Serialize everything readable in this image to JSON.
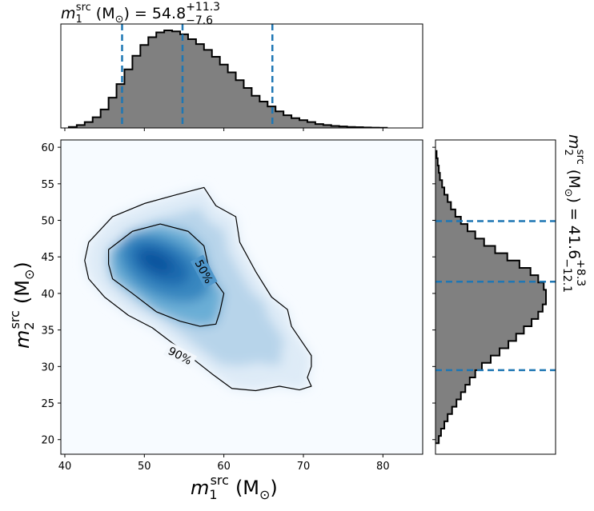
{
  "chart_data": [
    {
      "type": "area",
      "panel": "top-marginal",
      "title_main": "m",
      "title_sub": "1",
      "title_sup": "src",
      "title_unit": "(M",
      "title_sun_sub": "⊙",
      "title_close": ")",
      "title_eq": "= 54.8",
      "title_plus": "+11.3",
      "title_minus": "−7.6",
      "xlim": [
        39.5,
        85
      ],
      "ylim": [
        0,
        1
      ],
      "grid": false,
      "x": [
        41,
        42,
        43,
        44,
        45,
        46,
        47,
        48,
        49,
        50,
        51,
        52,
        53,
        54,
        55,
        56,
        57,
        58,
        59,
        60,
        61,
        62,
        63,
        64,
        65,
        66,
        67,
        68,
        69,
        70,
        71,
        72,
        73,
        74,
        75,
        76,
        77,
        78,
        79,
        80
      ],
      "density": [
        0.01,
        0.03,
        0.06,
        0.11,
        0.19,
        0.31,
        0.45,
        0.6,
        0.74,
        0.85,
        0.93,
        0.98,
        1.0,
        0.99,
        0.96,
        0.91,
        0.86,
        0.8,
        0.73,
        0.65,
        0.57,
        0.49,
        0.41,
        0.33,
        0.27,
        0.22,
        0.17,
        0.13,
        0.1,
        0.08,
        0.06,
        0.04,
        0.03,
        0.02,
        0.015,
        0.01,
        0.008,
        0.005,
        0.003,
        0.002
      ],
      "quantile_lines": [
        47.2,
        54.8,
        66.1
      ]
    },
    {
      "type": "area",
      "panel": "right-marginal",
      "orientation": "horizontal",
      "label_main": "m",
      "label_sub": "2",
      "label_sup": "src",
      "label_unit": "(M",
      "label_sun_sub": "⊙",
      "label_close": ")",
      "label_eq": "= 41.6",
      "label_plus": "+8.3",
      "label_minus": "−12.1",
      "ylim": [
        18,
        61
      ],
      "y": [
        20,
        21,
        22,
        23,
        24,
        25,
        26,
        27,
        28,
        29,
        30,
        31,
        32,
        33,
        34,
        35,
        36,
        37,
        38,
        39,
        40,
        41,
        42,
        43,
        44,
        45,
        46,
        47,
        48,
        49,
        50,
        51,
        52,
        53,
        54,
        55,
        56,
        57,
        58,
        59
      ],
      "density": [
        0.03,
        0.05,
        0.08,
        0.11,
        0.15,
        0.19,
        0.23,
        0.27,
        0.31,
        0.36,
        0.42,
        0.5,
        0.58,
        0.66,
        0.73,
        0.8,
        0.87,
        0.93,
        0.97,
        1.0,
        1.0,
        0.98,
        0.93,
        0.86,
        0.76,
        0.65,
        0.54,
        0.44,
        0.36,
        0.29,
        0.23,
        0.18,
        0.14,
        0.11,
        0.08,
        0.06,
        0.04,
        0.03,
        0.02,
        0.01
      ],
      "quantile_lines": [
        29.5,
        41.6,
        49.9
      ]
    },
    {
      "type": "heatmap",
      "panel": "joint",
      "xlabel_main": "m",
      "xlabel_sub": "1",
      "xlabel_sup": "src",
      "xlabel_unit": "(M",
      "xlabel_sun_sub": "⊙",
      "xlabel_close": ")",
      "ylabel_main": "m",
      "ylabel_sub": "2",
      "ylabel_sup": "src",
      "ylabel_unit": "(M",
      "ylabel_sun_sub": "⊙",
      "ylabel_close": ")",
      "xlim": [
        39.5,
        85
      ],
      "ylim": [
        18,
        61
      ],
      "xticks": [
        "40",
        "50",
        "60",
        "70",
        "80"
      ],
      "xtick_values": [
        40,
        50,
        60,
        70,
        80
      ],
      "yticks": [
        "20",
        "25",
        "30",
        "35",
        "40",
        "45",
        "50",
        "55",
        "60"
      ],
      "ytick_values": [
        20,
        25,
        30,
        35,
        40,
        45,
        50,
        55,
        60
      ],
      "colormap": "Blues",
      "peak": [
        52,
        44
      ],
      "contours": [
        {
          "label": "90%",
          "label_at": [
            54.5,
            31.5
          ],
          "points": [
            [
              43,
              47
            ],
            [
              46,
              50.5
            ],
            [
              50,
              52.3
            ],
            [
              54,
              53.5
            ],
            [
              57.5,
              54.5
            ],
            [
              59,
              52
            ],
            [
              61.5,
              50.5
            ],
            [
              62,
              47
            ],
            [
              64,
              43
            ],
            [
              66,
              39.5
            ],
            [
              68,
              37.8
            ],
            [
              68.5,
              35.5
            ],
            [
              71,
              31.5
            ],
            [
              71,
              30
            ],
            [
              70.5,
              28.5
            ],
            [
              71,
              27.3
            ],
            [
              69.5,
              26.8
            ],
            [
              67,
              27.3
            ],
            [
              64,
              26.7
            ],
            [
              61,
              27
            ],
            [
              58.5,
              29
            ],
            [
              55,
              32
            ],
            [
              51,
              35.3
            ],
            [
              48,
              37
            ],
            [
              45,
              39.5
            ],
            [
              43,
              42
            ],
            [
              42.5,
              44.5
            ],
            [
              43,
              47
            ]
          ]
        },
        {
          "label": "50%",
          "label_at": [
            57.5,
            43
          ],
          "points": [
            [
              45.5,
              46
            ],
            [
              48.5,
              48.5
            ],
            [
              52,
              49.5
            ],
            [
              55.5,
              48.5
            ],
            [
              57.5,
              46.5
            ],
            [
              58,
              44
            ],
            [
              59,
              41.5
            ],
            [
              60,
              40
            ],
            [
              59.5,
              37.5
            ],
            [
              59,
              35.8
            ],
            [
              57,
              35.5
            ],
            [
              54.5,
              36.2
            ],
            [
              51.5,
              37.5
            ],
            [
              48.5,
              40
            ],
            [
              46,
              42
            ],
            [
              45.5,
              44
            ],
            [
              45.5,
              46
            ]
          ]
        }
      ]
    }
  ]
}
